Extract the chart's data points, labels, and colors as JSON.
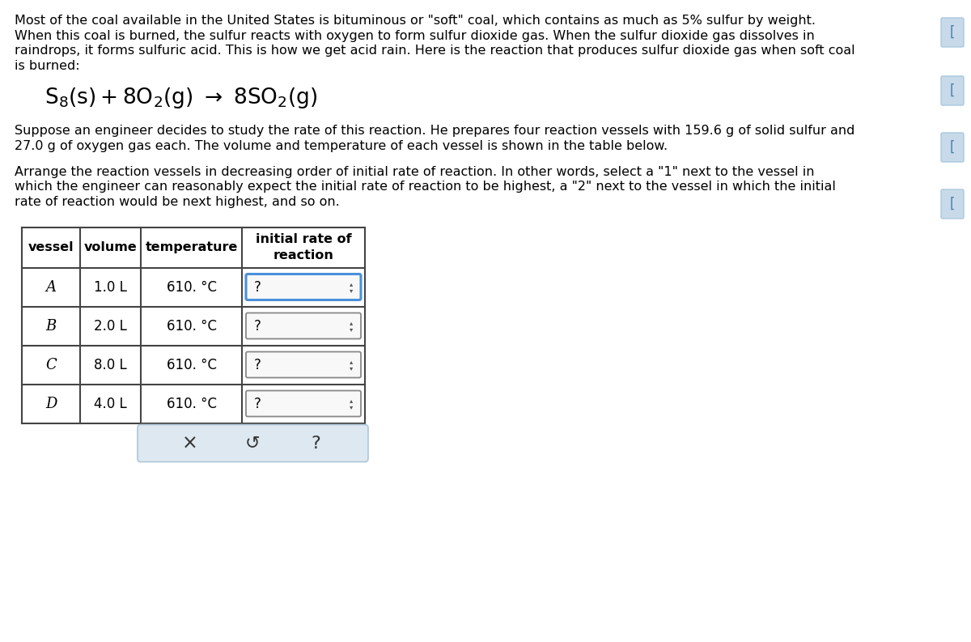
{
  "bg_color": "#ffffff",
  "text_color": "#000000",
  "intro_text_lines": [
    "Most of the coal available in the United States is bituminous or \"soft\" coal, which contains as much as 5% sulfur by weight.",
    "When this coal is burned, the sulfur reacts with oxygen to form sulfur dioxide gas. When the sulfur dioxide gas dissolves in",
    "raindrops, it forms sulfuric acid. This is how we get acid rain. Here is the reaction that produces sulfur dioxide gas when soft coal",
    "is burned:"
  ],
  "para2_text_lines": [
    "Suppose an engineer decides to study the rate of this reaction. He prepares four reaction vessels with 159.6 g of solid sulfur and",
    "27.0 g of oxygen gas each. The volume and temperature of each vessel is shown in the table below."
  ],
  "para3_text_lines": [
    "Arrange the reaction vessels in decreasing order of initial rate of reaction. In other words, select a \"1\" next to the vessel in",
    "which the engineer can reasonably expect the initial rate of reaction to be highest, a \"2\" next to the vessel in which the initial",
    "rate of reaction would be next highest, and so on."
  ],
  "table": {
    "vessels": [
      "A",
      "B",
      "C",
      "D"
    ],
    "volumes": [
      "1.0 L",
      "2.0 L",
      "8.0 L",
      "4.0 L"
    ],
    "temperatures": [
      "610. °C",
      "610. °C",
      "610. °C",
      "610. °C"
    ]
  },
  "table_border_color": "#444444",
  "dropdown_border_color_active": "#4a90d9",
  "dropdown_border_color_inactive": "#888888",
  "bottom_panel_bg": "#dde8f0",
  "scrollbar_color": "#c8daea",
  "scrollbar_text": "#4a80aa"
}
